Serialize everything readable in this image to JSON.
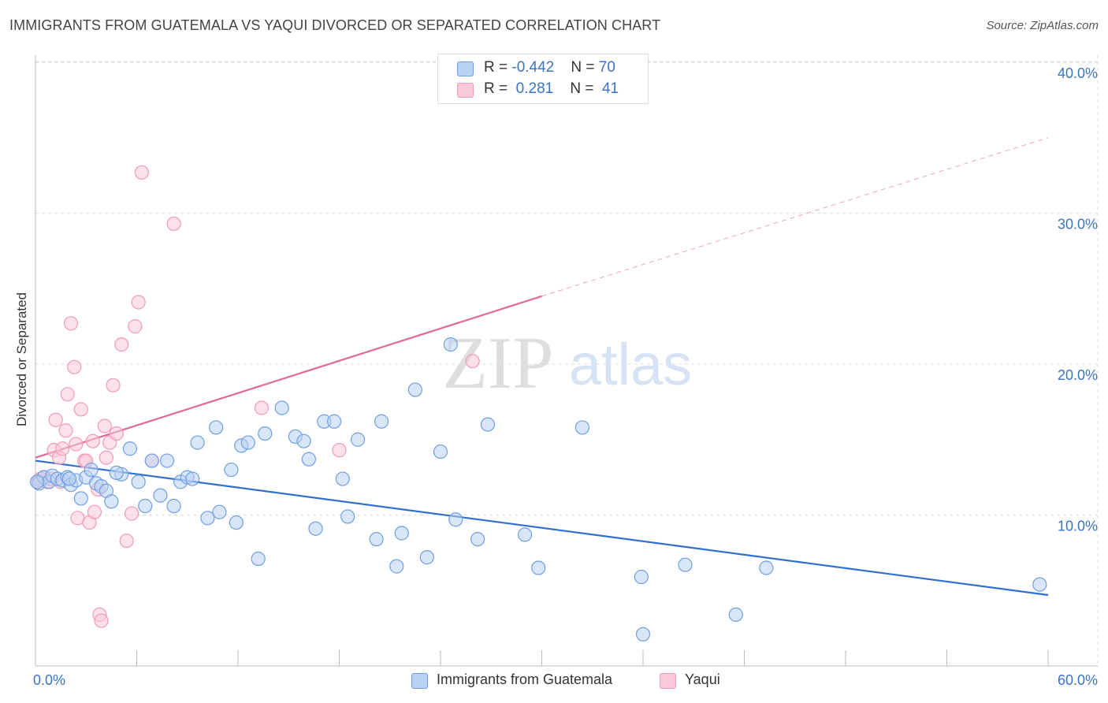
{
  "header": {
    "title": "IMMIGRANTS FROM GUATEMALA VS YAQUI DIVORCED OR SEPARATED CORRELATION CHART",
    "source": "Source: ZipAtlas.com"
  },
  "watermark": {
    "zip": "ZIP",
    "atlas": "atlas"
  },
  "legend_top": {
    "rows": [
      {
        "r_label": "R = ",
        "r_value": "-0.442",
        "n_label": "N = ",
        "n_value": "70"
      },
      {
        "r_label": "R = ",
        "r_value": " 0.281",
        "n_label": "N = ",
        "n_value": " 41"
      }
    ]
  },
  "chart_data": {
    "type": "scatter",
    "title": "IMMIGRANTS FROM GUATEMALA VS YAQUI DIVORCED OR SEPARATED CORRELATION CHART",
    "xlabel": "",
    "ylabel": "Divorced or Separated",
    "xlim": [
      0,
      60
    ],
    "ylim": [
      0,
      42
    ],
    "x_tick_labels": [
      "0.0%",
      "60.0%"
    ],
    "y_ticks": [
      10,
      20,
      30,
      40
    ],
    "y_tick_labels": [
      "10.0%",
      "20.0%",
      "30.0%",
      "40.0%"
    ],
    "grid": true,
    "legend_position": "bottom",
    "series": [
      {
        "name": "Immigrants from Guatemala",
        "color": "#6f9fe0",
        "fill": "#b9d1f3",
        "line_color": "#2f6fd0",
        "trend": {
          "x": [
            0,
            60
          ],
          "y": [
            13.6,
            4.7
          ]
        },
        "points": [
          [
            0.2,
            12.1
          ],
          [
            0.5,
            12.5
          ],
          [
            0.8,
            12.2
          ],
          [
            1.0,
            12.6
          ],
          [
            1.3,
            12.4
          ],
          [
            1.6,
            12.3
          ],
          [
            1.9,
            12.5
          ],
          [
            2.1,
            12.0
          ],
          [
            2.4,
            12.3
          ],
          [
            2.7,
            11.1
          ],
          [
            3.0,
            12.5
          ],
          [
            3.3,
            13.0
          ],
          [
            3.6,
            12.1
          ],
          [
            3.9,
            11.9
          ],
          [
            4.2,
            11.6
          ],
          [
            4.5,
            10.9
          ],
          [
            5.1,
            12.7
          ],
          [
            5.6,
            14.4
          ],
          [
            6.1,
            12.2
          ],
          [
            6.5,
            10.6
          ],
          [
            6.9,
            13.6
          ],
          [
            7.4,
            11.3
          ],
          [
            7.8,
            13.6
          ],
          [
            8.2,
            10.6
          ],
          [
            8.6,
            12.2
          ],
          [
            9.0,
            12.5
          ],
          [
            9.6,
            14.8
          ],
          [
            10.2,
            9.8
          ],
          [
            10.7,
            15.8
          ],
          [
            10.9,
            10.2
          ],
          [
            11.6,
            13.0
          ],
          [
            11.9,
            9.5
          ],
          [
            12.2,
            14.6
          ],
          [
            12.6,
            14.8
          ],
          [
            13.2,
            7.1
          ],
          [
            13.6,
            15.4
          ],
          [
            14.6,
            17.1
          ],
          [
            15.4,
            15.2
          ],
          [
            15.9,
            14.9
          ],
          [
            16.2,
            13.7
          ],
          [
            16.6,
            9.1
          ],
          [
            17.1,
            16.2
          ],
          [
            17.7,
            16.2
          ],
          [
            18.2,
            12.4
          ],
          [
            18.5,
            9.9
          ],
          [
            19.1,
            15.0
          ],
          [
            20.2,
            8.4
          ],
          [
            21.4,
            6.6
          ],
          [
            21.7,
            8.8
          ],
          [
            20.5,
            16.2
          ],
          [
            22.5,
            18.3
          ],
          [
            23.2,
            7.2
          ],
          [
            24.0,
            14.2
          ],
          [
            24.6,
            21.3
          ],
          [
            24.9,
            9.7
          ],
          [
            26.2,
            8.4
          ],
          [
            26.8,
            16.0
          ],
          [
            29.0,
            8.7
          ],
          [
            29.8,
            6.5
          ],
          [
            32.4,
            15.8
          ],
          [
            35.9,
            5.9
          ],
          [
            36.0,
            2.1
          ],
          [
            38.5,
            6.7
          ],
          [
            41.5,
            3.4
          ],
          [
            43.3,
            6.5
          ],
          [
            59.5,
            5.4
          ],
          [
            2.0,
            12.4
          ],
          [
            4.8,
            12.8
          ],
          [
            9.3,
            12.4
          ],
          [
            0.1,
            12.2
          ]
        ]
      },
      {
        "name": "Yaqui",
        "color": "#f09ab8",
        "fill": "#f9c8d9",
        "line_color": "#e06a92",
        "trend": {
          "x": [
            0,
            30
          ],
          "y": [
            13.8,
            24.5
          ],
          "dash_to": [
            60,
            35.0
          ]
        },
        "points": [
          [
            0.2,
            12.3
          ],
          [
            0.5,
            12.5
          ],
          [
            0.7,
            12.2
          ],
          [
            0.9,
            12.4
          ],
          [
            1.1,
            14.3
          ],
          [
            1.2,
            16.3
          ],
          [
            1.4,
            13.8
          ],
          [
            1.6,
            14.4
          ],
          [
            1.8,
            15.6
          ],
          [
            1.9,
            18.0
          ],
          [
            2.1,
            22.7
          ],
          [
            2.3,
            19.8
          ],
          [
            2.4,
            14.7
          ],
          [
            2.5,
            9.8
          ],
          [
            2.7,
            17.0
          ],
          [
            2.9,
            13.6
          ],
          [
            3.0,
            13.6
          ],
          [
            3.2,
            9.5
          ],
          [
            3.4,
            14.9
          ],
          [
            3.5,
            10.2
          ],
          [
            3.7,
            11.7
          ],
          [
            3.8,
            3.4
          ],
          [
            3.9,
            3.0
          ],
          [
            4.1,
            15.9
          ],
          [
            4.2,
            13.8
          ],
          [
            4.4,
            14.8
          ],
          [
            4.6,
            18.6
          ],
          [
            4.8,
            15.4
          ],
          [
            5.1,
            21.3
          ],
          [
            5.4,
            8.3
          ],
          [
            5.7,
            10.1
          ],
          [
            5.9,
            22.5
          ],
          [
            6.1,
            24.1
          ],
          [
            6.3,
            32.7
          ],
          [
            6.9,
            13.6
          ],
          [
            8.2,
            29.3
          ],
          [
            13.4,
            17.1
          ],
          [
            18.0,
            14.3
          ],
          [
            25.9,
            20.2
          ],
          [
            1.5,
            12.2
          ],
          [
            0.3,
            12.4
          ]
        ]
      }
    ]
  }
}
